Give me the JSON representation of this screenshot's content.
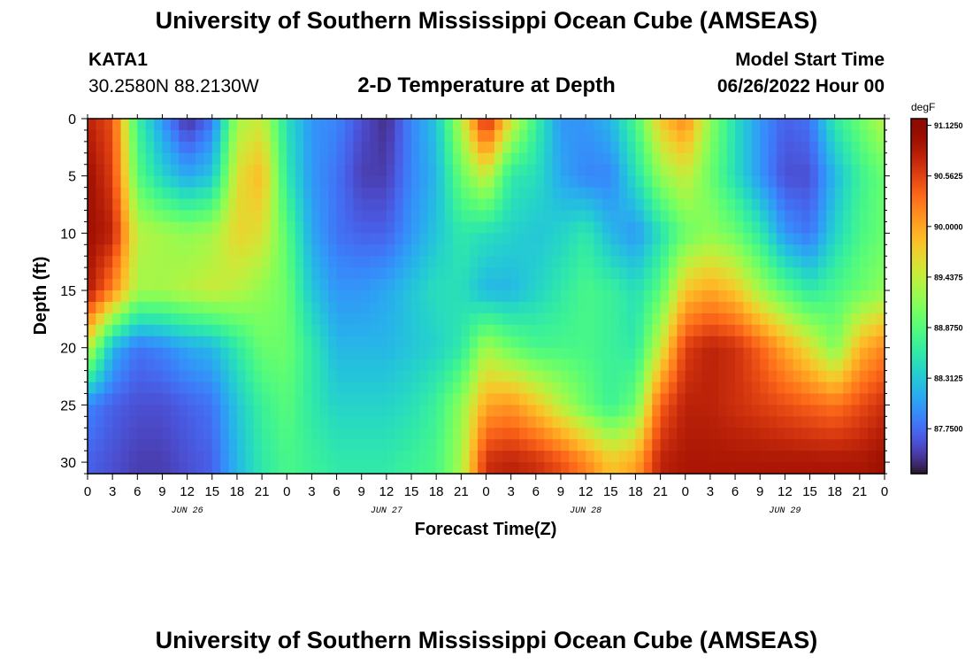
{
  "header": {
    "title": "University of Southern Mississippi Ocean Cube (AMSEAS)",
    "station_id": "KATA1",
    "coords": "30.2580N  88.2130W",
    "subtitle": "2-D Temperature at Depth",
    "model_label": "Model Start Time",
    "model_time": "06/26/2022 Hour 00"
  },
  "footer": {
    "title": "University of Southern Mississippi Ocean Cube (AMSEAS)"
  },
  "chart_data": {
    "type": "heatmap",
    "title": "2-D Temperature at Depth",
    "xlabel": "Forecast Time(Z)",
    "ylabel": "Depth (ft)",
    "x_tick_labels": [
      "0",
      "3",
      "6",
      "9",
      "12",
      "15",
      "18",
      "21",
      "0",
      "3",
      "6",
      "9",
      "12",
      "15",
      "18",
      "21",
      "0",
      "3",
      "6",
      "9",
      "12",
      "15",
      "18",
      "21",
      "0",
      "3",
      "6",
      "9",
      "12",
      "15",
      "18",
      "21",
      "0"
    ],
    "day_labels": [
      "JUN 26",
      "JUN 27",
      "JUN 28",
      "JUN 29"
    ],
    "y_ticks": [
      0,
      5,
      10,
      15,
      20,
      25,
      30
    ],
    "xlim": [
      0,
      96
    ],
    "ylim": [
      0,
      31
    ],
    "colorbar": {
      "units": "degF",
      "tick_labels": [
        "91.1250",
        "90.5625",
        "90.0000",
        "89.4375",
        "88.8750",
        "88.3125",
        "87.7500"
      ],
      "tick_values": [
        91.125,
        90.5625,
        90.0,
        89.4375,
        88.875,
        88.3125,
        87.75
      ],
      "range": [
        87.25,
        91.2
      ]
    },
    "depths_ft": [
      0,
      5,
      10,
      15,
      20,
      25,
      30
    ],
    "hours": [
      0,
      3,
      6,
      9,
      12,
      15,
      18,
      21,
      24,
      27,
      30,
      33,
      36,
      39,
      42,
      45,
      48,
      51,
      54,
      57,
      60,
      63,
      66,
      69,
      72,
      75,
      78,
      81,
      84,
      87,
      90,
      93,
      96
    ],
    "temperature_degF": [
      [
        90.8,
        90.5,
        88.7,
        88.0,
        87.4,
        87.8,
        89.3,
        89.5,
        88.5,
        88.0,
        87.9,
        87.6,
        87.4,
        87.9,
        88.3,
        89.4,
        90.8,
        89.6,
        88.7,
        88.0,
        88.0,
        88.2,
        88.8,
        89.8,
        90.2,
        89.2,
        88.5,
        88.0,
        87.7,
        87.8,
        88.6,
        89.0,
        89.4
      ],
      [
        91.0,
        90.6,
        88.9,
        88.4,
        88.1,
        88.3,
        89.6,
        89.9,
        88.6,
        88.0,
        87.8,
        87.5,
        87.5,
        87.9,
        88.2,
        89.0,
        89.5,
        88.6,
        88.5,
        88.1,
        87.9,
        87.9,
        88.5,
        89.2,
        89.5,
        89.0,
        88.5,
        88.0,
        87.6,
        87.6,
        88.2,
        88.7,
        89.0
      ],
      [
        91.0,
        90.8,
        89.4,
        89.3,
        89.2,
        89.3,
        89.7,
        89.6,
        88.9,
        88.1,
        87.8,
        87.7,
        87.7,
        88.0,
        88.3,
        88.6,
        88.5,
        88.4,
        88.3,
        88.4,
        88.6,
        88.2,
        88.0,
        88.5,
        89.0,
        89.2,
        89.0,
        88.6,
        88.0,
        87.8,
        88.4,
        88.8,
        89.0
      ],
      [
        90.9,
        90.2,
        89.3,
        89.3,
        89.4,
        89.5,
        89.4,
        89.2,
        89.0,
        88.3,
        88.0,
        88.0,
        88.1,
        88.3,
        88.5,
        88.5,
        88.2,
        88.2,
        88.4,
        88.6,
        88.8,
        88.7,
        88.5,
        88.9,
        89.8,
        90.0,
        89.8,
        89.3,
        88.9,
        88.6,
        88.8,
        89.0,
        89.2
      ],
      [
        89.5,
        88.2,
        87.8,
        87.9,
        88.1,
        88.2,
        88.6,
        89.0,
        89.0,
        88.6,
        88.2,
        88.2,
        88.2,
        88.3,
        88.4,
        88.6,
        89.3,
        89.0,
        88.8,
        88.8,
        88.8,
        88.7,
        88.6,
        89.5,
        90.6,
        90.8,
        90.7,
        90.4,
        90.0,
        89.6,
        89.1,
        89.9,
        90.2
      ],
      [
        87.9,
        87.7,
        87.6,
        87.6,
        87.7,
        87.8,
        88.3,
        88.7,
        88.9,
        88.6,
        88.4,
        88.4,
        88.4,
        88.5,
        88.7,
        89.2,
        90.0,
        90.1,
        89.8,
        89.4,
        89.0,
        88.7,
        89.0,
        90.4,
        90.8,
        90.8,
        90.7,
        90.6,
        90.5,
        90.4,
        90.3,
        90.5,
        90.7
      ],
      [
        87.7,
        87.6,
        87.5,
        87.5,
        87.6,
        87.7,
        88.2,
        88.6,
        88.8,
        88.7,
        88.6,
        88.6,
        88.6,
        88.7,
        88.8,
        89.3,
        90.7,
        90.8,
        90.7,
        90.5,
        90.2,
        89.8,
        90.0,
        90.8,
        90.9,
        90.9,
        90.9,
        90.9,
        90.9,
        90.9,
        90.9,
        90.9,
        91.0
      ]
    ]
  }
}
